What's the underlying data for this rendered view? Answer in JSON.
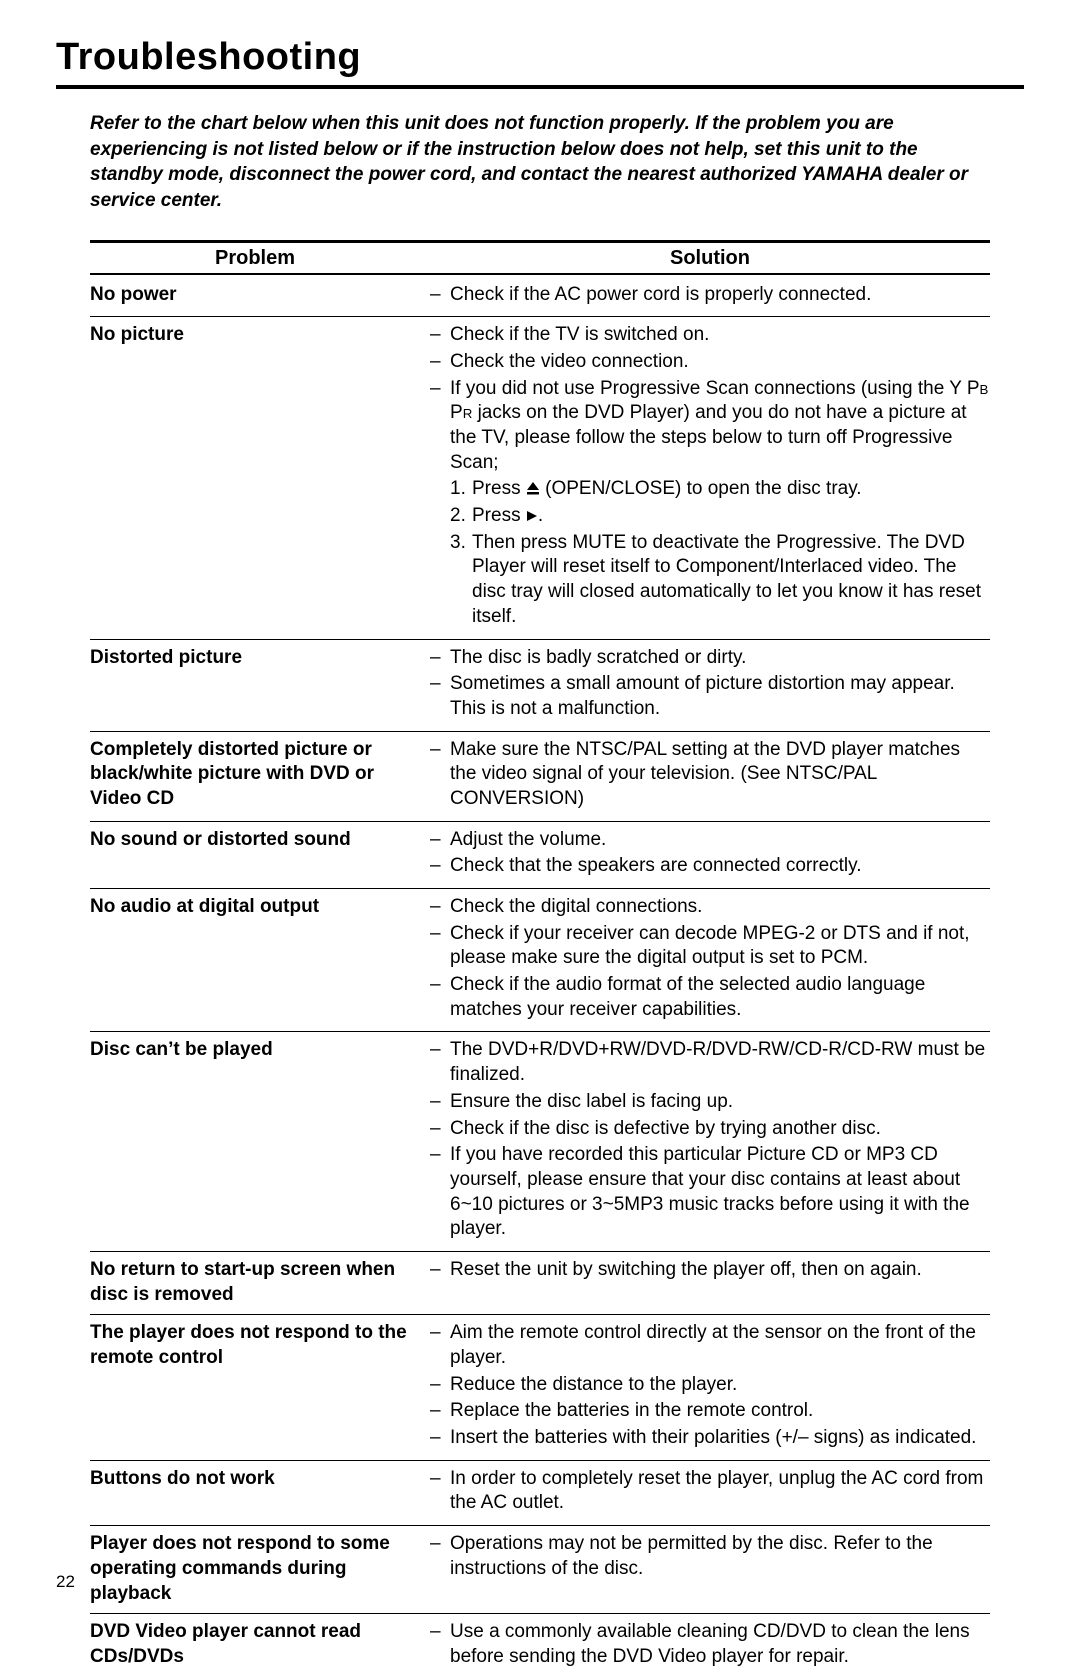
{
  "title": "Troubleshooting",
  "intro": "Refer to the chart below when this unit does not function properly. If the problem you are experiencing is not listed below or if the instruction below does not help, set this unit to the standby mode, disconnect the power cord, and contact the nearest authorized YAMAHA dealer or service center.",
  "headers": {
    "problem": "Problem",
    "solution": "Solution"
  },
  "page_number": "22",
  "rows": [
    {
      "problem": "No power",
      "solutions": [
        {
          "text": "Check if the AC power cord is properly connected."
        }
      ]
    },
    {
      "problem": "No picture",
      "solutions": [
        {
          "text": "Check if the TV is switched on."
        },
        {
          "text": "Check the video connection."
        },
        {
          "text_pre": "If you did not use Progressive Scan connections (using the Y ",
          "pbpr": true,
          "text_mid": " jacks on the DVD Player) and you do not have a picture at the TV, please follow the steps below to turn off Progressive Scan;",
          "numbered": [
            {
              "n": "1.",
              "pre": "Press ",
              "icon": "eject",
              "post": " (OPEN/CLOSE) to open the disc tray."
            },
            {
              "n": "2.",
              "pre": "Press ",
              "icon": "play",
              "post": "."
            },
            {
              "n": "3.",
              "plain": "Then press MUTE to deactivate the Progressive. The DVD Player will reset itself to Component/Interlaced video. The disc tray will closed automatically to let you know it has reset itself."
            }
          ]
        }
      ]
    },
    {
      "problem": "Distorted picture",
      "solutions": [
        {
          "text": "The disc is badly scratched or dirty."
        },
        {
          "text": "Sometimes a small amount of picture distortion may appear. This is not a malfunction."
        }
      ]
    },
    {
      "problem": "Completely distorted picture or black/white picture with DVD or Video CD",
      "solutions": [
        {
          "text": "Make sure the NTSC/PAL setting at the DVD player matches the video signal of your television. (See NTSC/PAL CONVERSION)"
        }
      ]
    },
    {
      "problem": "No sound or distorted sound",
      "solutions": [
        {
          "text": "Adjust the volume."
        },
        {
          "text": "Check that the speakers are connected correctly."
        }
      ]
    },
    {
      "problem": "No audio at digital output",
      "solutions": [
        {
          "text": "Check the digital connections."
        },
        {
          "text": "Check if your receiver can decode MPEG-2 or DTS and if not, please make sure the digital output is set to PCM."
        },
        {
          "text": "Check if the audio format of the selected audio language matches your receiver capabilities."
        }
      ]
    },
    {
      "problem": "Disc can’t be played",
      "solutions": [
        {
          "text": "The DVD+R/DVD+RW/DVD-R/DVD-RW/CD-R/CD-RW must be finalized."
        },
        {
          "text": "Ensure the disc label is facing up."
        },
        {
          "text": "Check if the disc is defective by trying another disc."
        },
        {
          "text": "If you have recorded this particular Picture CD or MP3 CD yourself, please ensure that your disc contains at least about 6~10 pictures or 3~5MP3 music tracks before using it with the player."
        }
      ]
    },
    {
      "problem": "No return to start-up screen when disc is removed",
      "solutions": [
        {
          "text": "Reset the unit by switching the player off, then on again."
        }
      ]
    },
    {
      "problem": "The player does not respond to the remote control",
      "solutions": [
        {
          "text": "Aim the remote control directly at the sensor on the front of the player."
        },
        {
          "text": "Reduce the distance to the player."
        },
        {
          "text": "Replace the batteries in the remote control."
        },
        {
          "text": "Insert the batteries with their polarities (+/– signs) as indicated."
        }
      ]
    },
    {
      "problem": "Buttons do not work",
      "solutions": [
        {
          "text": "In order to completely reset the player, unplug the AC cord from the AC outlet."
        }
      ]
    },
    {
      "problem": "Player does not respond to some operating commands during playback",
      "solutions": [
        {
          "text": "Operations may not be permitted by the disc. Refer to the instructions of the disc."
        }
      ]
    },
    {
      "problem": "DVD Video player cannot read CDs/DVDs",
      "solutions": [
        {
          "text": "Use a commonly available cleaning CD/DVD to clean the lens before sending the DVD Video player for repair."
        }
      ]
    }
  ]
}
